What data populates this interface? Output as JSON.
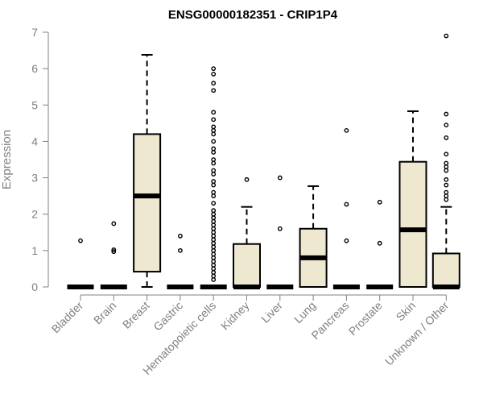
{
  "chart_data": {
    "type": "box",
    "title": "ENSG00000182351 - CRIP1P4",
    "xlabel": "",
    "ylabel": "Expression",
    "ylim": [
      0,
      7
    ],
    "yticks": [
      0,
      1,
      2,
      3,
      4,
      5,
      6,
      7
    ],
    "grid": false,
    "colors": {
      "box_fill": "#eee8d0",
      "box_stroke": "#000000",
      "median": "#000000",
      "axis": "#808080",
      "text": "#808080",
      "title": "#000000"
    },
    "categories": [
      "Bladder",
      "Brain",
      "Breast",
      "Gastric",
      "Hematopoietic cells",
      "Kidney",
      "Liver",
      "Lung",
      "Pancreas",
      "Prostate",
      "Skin",
      "Unknown / Other"
    ],
    "boxes": [
      {
        "category": "Bladder",
        "min": 0,
        "q1": 0,
        "median": 0,
        "q3": 0,
        "max": 0,
        "outliers": [
          1.27
        ]
      },
      {
        "category": "Brain",
        "min": 0,
        "q1": 0,
        "median": 0,
        "q3": 0,
        "max": 0,
        "outliers": [
          0.97,
          1.02,
          1.74
        ]
      },
      {
        "category": "Breast",
        "min": 0,
        "q1": 0.42,
        "median": 2.5,
        "q3": 4.2,
        "max": 6.38,
        "outliers": []
      },
      {
        "category": "Gastric",
        "min": 0,
        "q1": 0,
        "median": 0,
        "q3": 0,
        "max": 0,
        "outliers": [
          1.0,
          1.4
        ]
      },
      {
        "category": "Hematopoietic cells",
        "min": 0,
        "q1": 0,
        "median": 0,
        "q3": 0,
        "max": 0,
        "outliers": [
          0.2,
          0.3,
          0.4,
          0.5,
          0.6,
          0.7,
          0.8,
          0.9,
          1.0,
          1.1,
          1.2,
          1.3,
          1.4,
          1.5,
          1.6,
          1.7,
          1.8,
          1.9,
          2.0,
          2.1,
          2.3,
          2.5,
          2.6,
          2.8,
          2.9,
          3.1,
          3.2,
          3.4,
          3.5,
          3.7,
          3.8,
          4.0,
          4.2,
          4.3,
          4.4,
          4.6,
          4.8,
          5.4,
          5.6,
          5.85,
          6.0
        ]
      },
      {
        "category": "Kidney",
        "min": 0,
        "q1": 0,
        "median": 0,
        "q3": 1.18,
        "max": 2.2,
        "outliers": [
          2.95
        ]
      },
      {
        "category": "Liver",
        "min": 0,
        "q1": 0,
        "median": 0,
        "q3": 0,
        "max": 0,
        "outliers": [
          1.6,
          3.0
        ]
      },
      {
        "category": "Lung",
        "min": 0,
        "q1": 0,
        "median": 0.8,
        "q3": 1.6,
        "max": 2.77,
        "outliers": []
      },
      {
        "category": "Pancreas",
        "min": 0,
        "q1": 0,
        "median": 0,
        "q3": 0,
        "max": 0,
        "outliers": [
          1.27,
          2.27,
          4.3
        ]
      },
      {
        "category": "Prostate",
        "min": 0,
        "q1": 0,
        "median": 0,
        "q3": 0,
        "max": 0,
        "outliers": [
          1.2,
          2.33
        ]
      },
      {
        "category": "Skin",
        "min": 0,
        "q1": 0,
        "median": 1.57,
        "q3": 3.44,
        "max": 4.83,
        "outliers": []
      },
      {
        "category": "Unknown / Other",
        "min": 0,
        "q1": 0,
        "median": 0,
        "q3": 0.92,
        "max": 2.2,
        "outliers": [
          2.4,
          2.5,
          2.6,
          2.8,
          2.95,
          3.2,
          3.3,
          3.4,
          3.65,
          4.1,
          4.45,
          4.75,
          6.9
        ]
      }
    ]
  }
}
